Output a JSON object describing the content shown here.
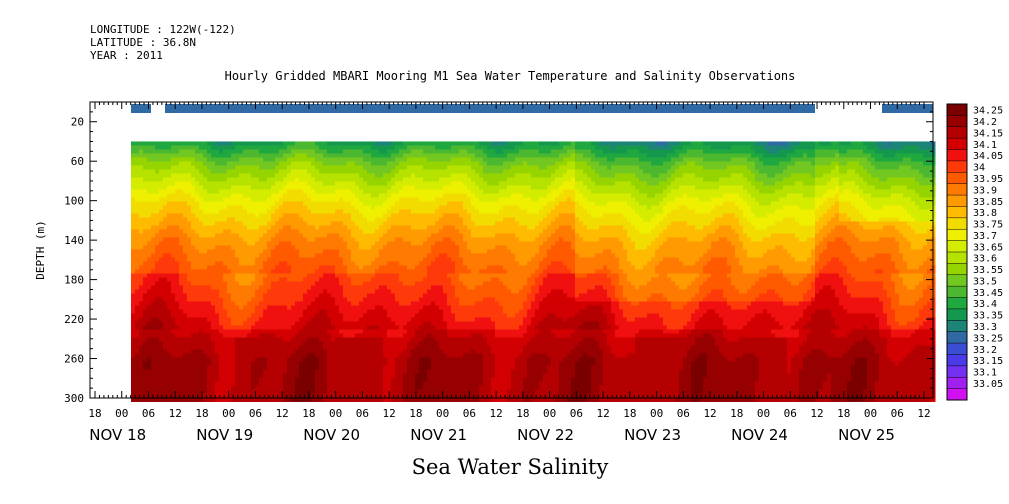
{
  "meta": [
    "LONGITUDE : 122W(-122)",
    "LATITUDE : 36.8N",
    "YEAR : 2011"
  ],
  "title": "Hourly Gridded MBARI Mooring M1 Sea Water Temperature and Salinity Observations",
  "footer": "Sea Water Salinity",
  "chart_data": {
    "type": "heatmap",
    "ylabel": "DEPTH (m)",
    "ylim": [
      0,
      300
    ],
    "y_reversed": true,
    "y_ticks": [
      20,
      60,
      100,
      140,
      180,
      220,
      260,
      300
    ],
    "x_range_hours": [
      "NOV 18 14:00",
      "NOV 25 18:00"
    ],
    "hour_labels": [
      "18",
      "00",
      "06",
      "12",
      "18",
      "00",
      "06",
      "12",
      "18",
      "00",
      "06",
      "12",
      "18",
      "00",
      "06",
      "12",
      "18",
      "00",
      "06",
      "12",
      "18",
      "00",
      "06",
      "12",
      "18",
      "00",
      "06",
      "12",
      "18",
      "00",
      "06",
      "12"
    ],
    "day_labels": [
      "NOV 18",
      "NOV 19",
      "NOV 20",
      "NOV 21",
      "NOV 22",
      "NOV 23",
      "NOV 24",
      "NOV 25"
    ],
    "colorbar": {
      "levels": [
        "34.25",
        "34.2",
        "34.15",
        "34.1",
        "34.05",
        "34",
        "33.95",
        "33.9",
        "33.85",
        "33.8",
        "33.75",
        "33.7",
        "33.65",
        "33.6",
        "33.55",
        "33.5",
        "33.45",
        "33.4",
        "33.35",
        "33.3",
        "33.25",
        "33.2",
        "33.15",
        "33.1",
        "33.05"
      ],
      "colors": [
        "#7a0000",
        "#960000",
        "#b40000",
        "#d20000",
        "#f01010",
        "#ff3a0a",
        "#ff5a00",
        "#ff7a00",
        "#ff9a00",
        "#ffbb00",
        "#f2dc00",
        "#eef000",
        "#d4ec00",
        "#b6e200",
        "#96d400",
        "#72c820",
        "#4cb830",
        "#20a840",
        "#14984e",
        "#1c8478",
        "#2f6aa4",
        "#3a4ed4",
        "#4a3ae8",
        "#7430f0",
        "#a020f0",
        "#d010f0"
      ]
    },
    "surface_band": {
      "depth_m": 10,
      "value_range": [
        33.2,
        33.3
      ],
      "segments_hours": [
        [
          10,
          28
        ],
        [
          44,
          684
        ],
        [
          750,
          850
        ]
      ]
    },
    "data_region": {
      "start_hour": 10,
      "end_hour": 844,
      "top_depth_m": 40,
      "bottom_depth_m": 300
    },
    "profile_summary": [
      {
        "depth_m": 40,
        "value": 33.4
      },
      {
        "depth_m": 60,
        "value": 33.55
      },
      {
        "depth_m": 100,
        "value": 33.75
      },
      {
        "depth_m": 140,
        "value": 33.9
      },
      {
        "depth_m": 180,
        "value": 34.0
      },
      {
        "depth_m": 220,
        "value": 34.1
      },
      {
        "depth_m": 260,
        "value": 34.2
      },
      {
        "depth_m": 300,
        "value": 34.2
      }
    ]
  }
}
